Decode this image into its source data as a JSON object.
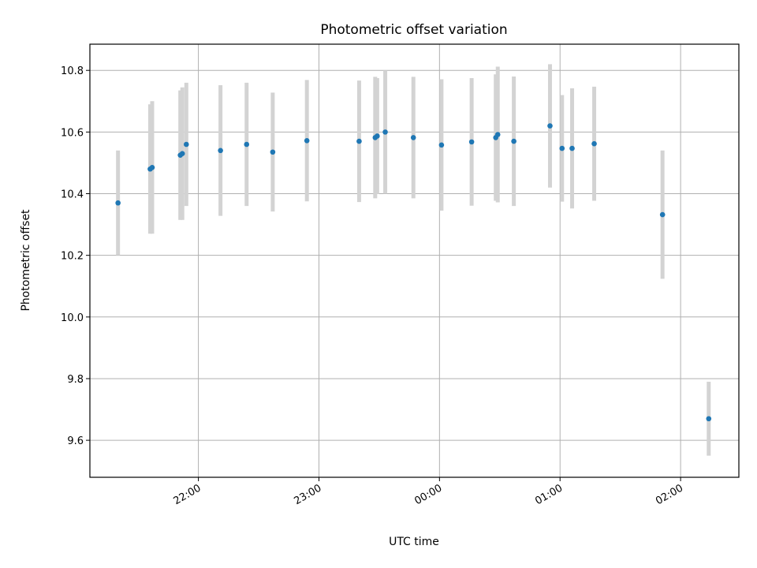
{
  "chart_data": {
    "type": "scatter",
    "title": "Photometric offset variation",
    "xlabel": "UTC time",
    "ylabel": "Photometric offset",
    "x_is_time": true,
    "x_reference_date": "2000-01-01",
    "xlim": [
      "2000-01-01T21:06",
      "2000-01-02T02:29"
    ],
    "ylim": [
      9.48,
      10.885
    ],
    "x_ticks": [
      "22:00",
      "23:00",
      "00:00",
      "01:00",
      "02:00"
    ],
    "y_ticks": [
      9.6,
      9.8,
      10.0,
      10.2,
      10.4,
      10.6,
      10.8
    ],
    "grid": true,
    "point_color": "#1f77b4",
    "errorbar_color": "#d3d3d3",
    "series": [
      {
        "points": [
          {
            "x": "2000-01-01T21:20",
            "y": 10.37,
            "err": 0.17
          },
          {
            "x": "2000-01-01T21:36",
            "y": 10.48,
            "err": 0.21
          },
          {
            "x": "2000-01-01T21:37",
            "y": 10.485,
            "err": 0.215
          },
          {
            "x": "2000-01-01T21:51",
            "y": 10.525,
            "err": 0.21
          },
          {
            "x": "2000-01-01T21:52",
            "y": 10.53,
            "err": 0.215
          },
          {
            "x": "2000-01-01T21:54",
            "y": 10.56,
            "err": 0.2
          },
          {
            "x": "2000-01-01T22:11",
            "y": 10.54,
            "err": 0.212
          },
          {
            "x": "2000-01-01T22:24",
            "y": 10.56,
            "err": 0.2
          },
          {
            "x": "2000-01-01T22:37",
            "y": 10.535,
            "err": 0.193
          },
          {
            "x": "2000-01-01T22:54",
            "y": 10.572,
            "err": 0.197
          },
          {
            "x": "2000-01-01T23:20",
            "y": 10.57,
            "err": 0.197
          },
          {
            "x": "2000-01-01T23:28",
            "y": 10.582,
            "err": 0.197
          },
          {
            "x": "2000-01-01T23:29",
            "y": 10.587,
            "err": 0.188
          },
          {
            "x": "2000-01-01T23:33",
            "y": 10.6,
            "err": 0.2
          },
          {
            "x": "2000-01-01T23:47",
            "y": 10.582,
            "err": 0.197
          },
          {
            "x": "2000-01-02T00:01",
            "y": 10.558,
            "err": 0.213
          },
          {
            "x": "2000-01-02T00:16",
            "y": 10.568,
            "err": 0.207
          },
          {
            "x": "2000-01-02T00:28",
            "y": 10.582,
            "err": 0.205
          },
          {
            "x": "2000-01-02T00:29",
            "y": 10.592,
            "err": 0.22
          },
          {
            "x": "2000-01-02T00:37",
            "y": 10.57,
            "err": 0.21
          },
          {
            "x": "2000-01-02T00:55",
            "y": 10.62,
            "err": 0.2
          },
          {
            "x": "2000-01-02T01:01",
            "y": 10.547,
            "err": 0.173
          },
          {
            "x": "2000-01-02T01:06",
            "y": 10.547,
            "err": 0.195
          },
          {
            "x": "2000-01-02T01:17",
            "y": 10.562,
            "err": 0.185
          },
          {
            "x": "2000-01-02T01:51",
            "y": 10.332,
            "err": 0.208
          },
          {
            "x": "2000-01-02T02:14",
            "y": 9.67,
            "err": 0.12
          }
        ]
      }
    ]
  }
}
